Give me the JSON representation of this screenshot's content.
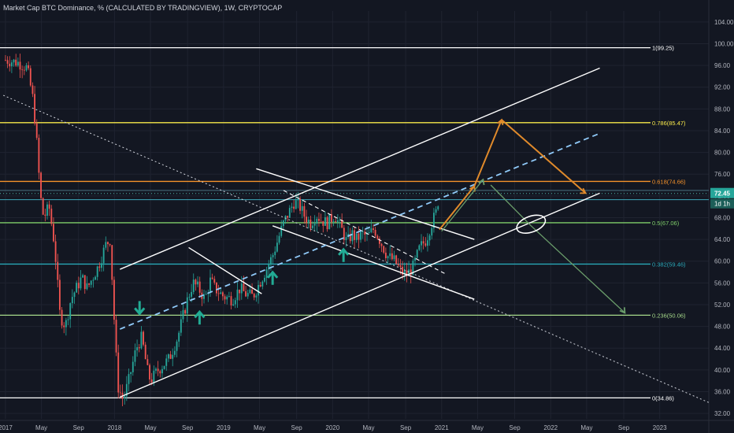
{
  "header": {
    "title": "Market Cap BTC Dominance, % (CALCULATED BY TRADINGVIEW), 1W, CRYPTOCAP"
  },
  "chart_data": {
    "type": "candlestick",
    "ylim": [
      31,
      106
    ],
    "xlim": [
      2016.95,
      2023.45
    ],
    "y_ticks": [
      32,
      36,
      40,
      44,
      48,
      52,
      56,
      60,
      64,
      68,
      72,
      76,
      80,
      84,
      88,
      92,
      96,
      100,
      104
    ],
    "x_ticks": [
      {
        "label": "2017",
        "x": 2017.0
      },
      {
        "label": "May",
        "x": 2017.33
      },
      {
        "label": "Sep",
        "x": 2017.67
      },
      {
        "label": "2018",
        "x": 2018.0
      },
      {
        "label": "May",
        "x": 2018.33
      },
      {
        "label": "Sep",
        "x": 2018.67
      },
      {
        "label": "2019",
        "x": 2019.0
      },
      {
        "label": "May",
        "x": 2019.33
      },
      {
        "label": "Sep",
        "x": 2019.67
      },
      {
        "label": "2020",
        "x": 2020.0
      },
      {
        "label": "May",
        "x": 2020.33
      },
      {
        "label": "Sep",
        "x": 2020.67
      },
      {
        "label": "2021",
        "x": 2021.0
      },
      {
        "label": "May",
        "x": 2021.33
      },
      {
        "label": "Sep",
        "x": 2021.67
      },
      {
        "label": "2022",
        "x": 2022.0
      },
      {
        "label": "May",
        "x": 2022.33
      },
      {
        "label": "Sep",
        "x": 2022.67
      },
      {
        "label": "2023",
        "x": 2023.0
      }
    ],
    "price": {
      "current": "72.45",
      "timer": "1d 1h",
      "value": 72.45
    },
    "fib_levels": [
      {
        "label": "1(99.25)",
        "value": 99.25,
        "color": "#ffffff"
      },
      {
        "label": "0.786(85.47)",
        "value": 85.47,
        "color": "#f7e84a"
      },
      {
        "label": "0.618(74.66)",
        "value": 74.66,
        "color": "#f5922a"
      },
      {
        "label": "0.5(67.06)",
        "value": 67.06,
        "color": "#7fcf6a"
      },
      {
        "label": "0.382(59.46)",
        "value": 59.46,
        "color": "#2aa8b8"
      },
      {
        "label": "0.236(50.06)",
        "value": 50.06,
        "color": "#a5d98a"
      },
      {
        "label": "0(34.86)",
        "value": 34.86,
        "color": "#ffffff"
      }
    ],
    "extra_levels": [
      {
        "value": 71.3,
        "color": "#3fa7b8"
      },
      {
        "value": 73.0,
        "color": "#4a6f80"
      }
    ],
    "close_path": [
      [
        2017.0,
        97.0
      ],
      [
        2017.12,
        96.5
      ],
      [
        2017.2,
        95.5
      ],
      [
        2017.25,
        90.0
      ],
      [
        2017.28,
        84.0
      ],
      [
        2017.32,
        72.0
      ],
      [
        2017.35,
        68.0
      ],
      [
        2017.4,
        70.0
      ],
      [
        2017.45,
        63.0
      ],
      [
        2017.5,
        50.0
      ],
      [
        2017.55,
        48.0
      ],
      [
        2017.6,
        53.0
      ],
      [
        2017.65,
        55.0
      ],
      [
        2017.7,
        57.0
      ],
      [
        2017.75,
        55.0
      ],
      [
        2017.8,
        57.0
      ],
      [
        2017.85,
        59.0
      ],
      [
        2017.92,
        63.0
      ],
      [
        2017.96,
        64.0
      ],
      [
        2018.0,
        48.0
      ],
      [
        2018.03,
        37.0
      ],
      [
        2018.08,
        34.5
      ],
      [
        2018.13,
        38.0
      ],
      [
        2018.2,
        44.0
      ],
      [
        2018.25,
        46.0
      ],
      [
        2018.3,
        40.0
      ],
      [
        2018.33,
        38.0
      ],
      [
        2018.4,
        40.0
      ],
      [
        2018.5,
        42.0
      ],
      [
        2018.58,
        46.0
      ],
      [
        2018.63,
        50.0
      ],
      [
        2018.67,
        53.0
      ],
      [
        2018.72,
        56.0
      ],
      [
        2018.77,
        55.0
      ],
      [
        2018.83,
        53.0
      ],
      [
        2018.88,
        56.5
      ],
      [
        2018.92,
        55.0
      ],
      [
        2019.0,
        53.5
      ],
      [
        2019.08,
        53.0
      ],
      [
        2019.15,
        55.0
      ],
      [
        2019.2,
        54.0
      ],
      [
        2019.27,
        53.5
      ],
      [
        2019.33,
        56.0
      ],
      [
        2019.38,
        58.0
      ],
      [
        2019.45,
        61.0
      ],
      [
        2019.5,
        64.0
      ],
      [
        2019.55,
        67.0
      ],
      [
        2019.6,
        69.0
      ],
      [
        2019.65,
        71.0
      ],
      [
        2019.7,
        70.0
      ],
      [
        2019.75,
        68.0
      ],
      [
        2019.8,
        67.0
      ],
      [
        2019.85,
        68.5
      ],
      [
        2019.9,
        67.5
      ],
      [
        2019.95,
        67.0
      ],
      [
        2020.02,
        68.5
      ],
      [
        2020.08,
        66.0
      ],
      [
        2020.13,
        63.5
      ],
      [
        2020.18,
        65.0
      ],
      [
        2020.22,
        64.0
      ],
      [
        2020.27,
        65.0
      ],
      [
        2020.32,
        64.5
      ],
      [
        2020.38,
        66.0
      ],
      [
        2020.43,
        64.0
      ],
      [
        2020.5,
        61.0
      ],
      [
        2020.57,
        60.0
      ],
      [
        2020.63,
        58.0
      ],
      [
        2020.68,
        57.5
      ],
      [
        2020.74,
        59.0
      ],
      [
        2020.8,
        62.5
      ],
      [
        2020.86,
        64.0
      ],
      [
        2020.9,
        66.5
      ],
      [
        2020.95,
        69.0
      ],
      [
        2020.98,
        72.45
      ]
    ]
  }
}
